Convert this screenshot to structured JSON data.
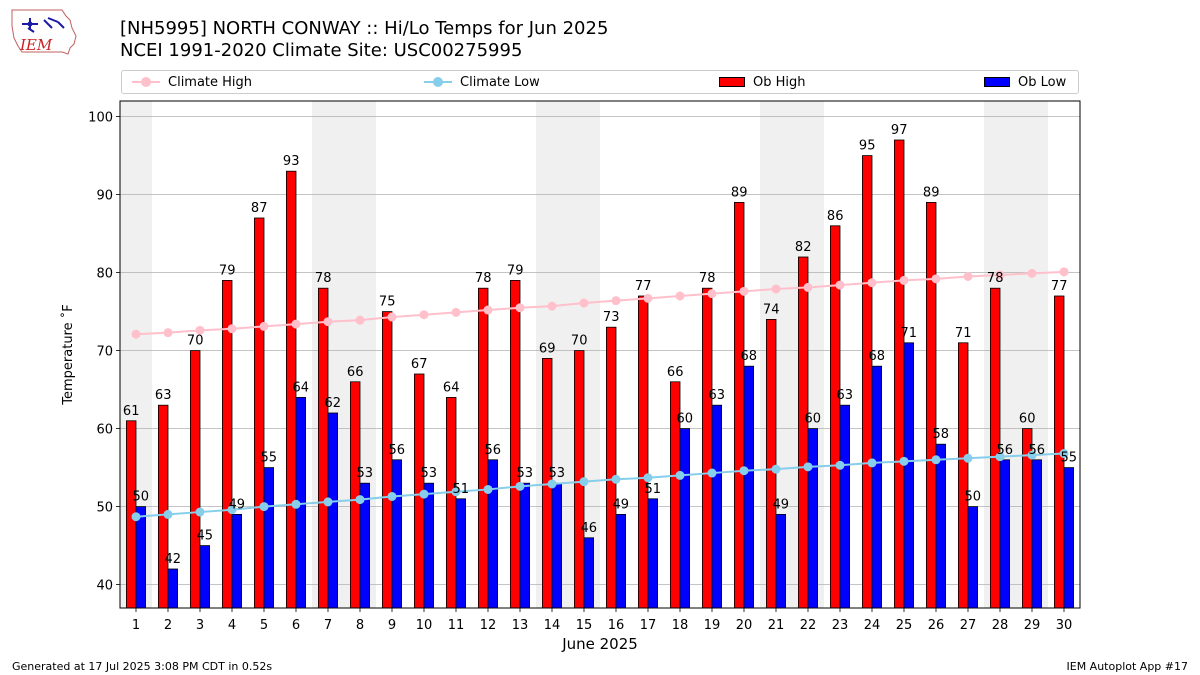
{
  "header": {
    "title_line1": "[NH5995] NORTH CONWAY :: Hi/Lo Temps for Jun 2025",
    "title_line2": "NCEI 1991-2020 Climate Site: USC00275995",
    "logo_text": "IEM"
  },
  "footer": {
    "generated": "Generated at 17 Jul 2025 3:08 PM CDT in 0.52s",
    "app": "IEM Autoplot App #17"
  },
  "legend": {
    "placement": "top",
    "items": [
      {
        "label": "Climate High",
        "color": "#ffc0cb",
        "kind": "line"
      },
      {
        "label": "Climate Low",
        "color": "#87ceeb",
        "kind": "line"
      },
      {
        "label": "Ob High",
        "color": "#ff0000",
        "kind": "bar"
      },
      {
        "label": "Ob Low",
        "color": "#0000ff",
        "kind": "bar"
      }
    ]
  },
  "chart_data": {
    "type": "bar",
    "title": "[NH5995] NORTH CONWAY :: Hi/Lo Temps for Jun 2025",
    "subtitle": "NCEI 1991-2020 Climate Site: USC00275995",
    "xlabel": "June 2025",
    "ylabel": "Temperature ˚F",
    "ylim": [
      37,
      102
    ],
    "yticks": [
      40,
      50,
      60,
      70,
      80,
      90,
      100
    ],
    "grid": true,
    "weekend_shading_days": [
      1,
      7,
      8,
      14,
      15,
      21,
      22,
      28,
      29
    ],
    "categories": [
      "1",
      "2",
      "3",
      "4",
      "5",
      "6",
      "7",
      "8",
      "9",
      "10",
      "11",
      "12",
      "13",
      "14",
      "15",
      "16",
      "17",
      "18",
      "19",
      "20",
      "21",
      "22",
      "23",
      "24",
      "25",
      "26",
      "27",
      "28",
      "29",
      "30"
    ],
    "series": [
      {
        "name": "Ob High",
        "type": "bar",
        "color": "#ff0000",
        "values": [
          61,
          63,
          70,
          79,
          87,
          93,
          78,
          66,
          75,
          67,
          64,
          78,
          79,
          69,
          70,
          73,
          77,
          66,
          78,
          89,
          74,
          82,
          86,
          95,
          97,
          89,
          71,
          78,
          60,
          77
        ]
      },
      {
        "name": "Ob Low",
        "type": "bar",
        "color": "#0000ff",
        "values": [
          50,
          42,
          45,
          49,
          55,
          64,
          62,
          53,
          56,
          53,
          51,
          56,
          53,
          53,
          46,
          49,
          51,
          60,
          63,
          68,
          49,
          60,
          63,
          68,
          71,
          58,
          50,
          56,
          56,
          55
        ]
      },
      {
        "name": "Climate High",
        "type": "line",
        "color": "#ffc0cb",
        "values": [
          72.1,
          72.3,
          72.6,
          72.8,
          73.1,
          73.4,
          73.7,
          73.9,
          74.3,
          74.6,
          74.9,
          75.2,
          75.5,
          75.7,
          76.1,
          76.4,
          76.7,
          77.0,
          77.3,
          77.6,
          77.9,
          78.1,
          78.4,
          78.7,
          79.0,
          79.2,
          79.5,
          79.7,
          79.9,
          80.1
        ]
      },
      {
        "name": "Climate Low",
        "type": "line",
        "color": "#87ceeb",
        "values": [
          48.7,
          49.0,
          49.3,
          49.6,
          50.0,
          50.3,
          50.6,
          50.9,
          51.3,
          51.6,
          51.9,
          52.2,
          52.6,
          52.9,
          53.2,
          53.5,
          53.7,
          54.0,
          54.3,
          54.6,
          54.8,
          55.1,
          55.3,
          55.6,
          55.8,
          56.0,
          56.2,
          56.4,
          56.6,
          56.8
        ]
      }
    ]
  }
}
